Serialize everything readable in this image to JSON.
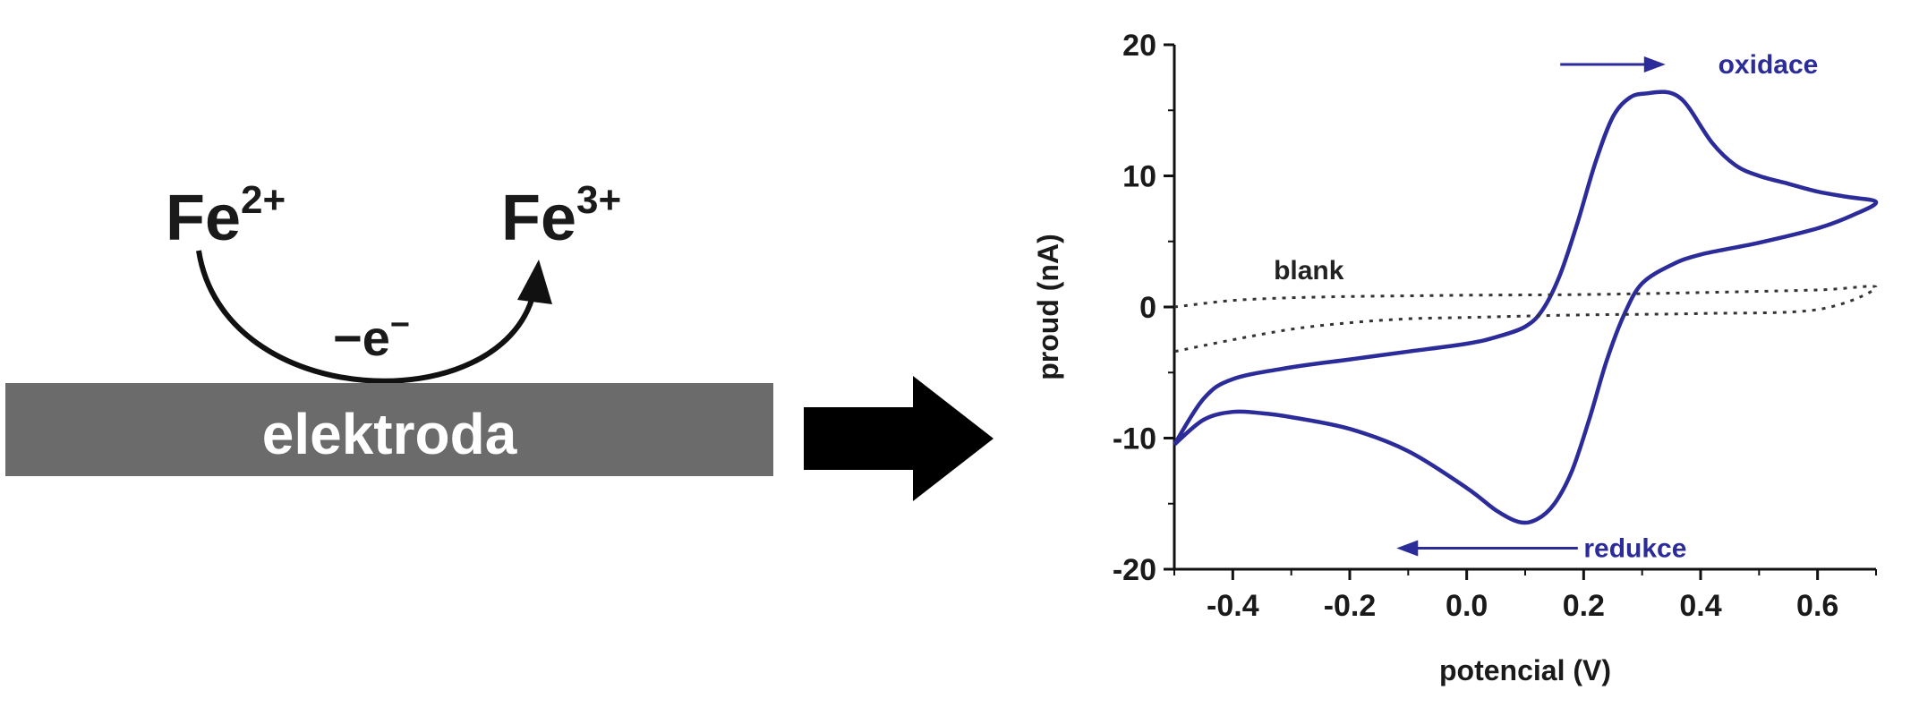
{
  "scheme": {
    "reactant": {
      "base": "Fe",
      "charge": "2+"
    },
    "product": {
      "base": "Fe",
      "charge": "3+"
    },
    "electron_label": "−e",
    "electron_sup": "−",
    "electrode_label": "elektroda",
    "electrode_color": "#6b6b6b",
    "arrow_icon": "big-right-arrow-icon"
  },
  "chart_data": {
    "type": "line",
    "xlabel": "potencial (V)",
    "ylabel": "proud (nA)",
    "xlim": [
      -0.5,
      0.7
    ],
    "ylim": [
      -20,
      20
    ],
    "xticks": [
      -0.4,
      -0.2,
      0.0,
      0.2,
      0.4,
      0.6
    ],
    "xtick_labels": [
      "-0.4",
      "-0.2",
      "0.0",
      "0.2",
      "0.4",
      "0.6"
    ],
    "yticks": [
      -20,
      -10,
      0,
      10,
      20
    ],
    "ytick_labels": [
      "-20",
      "-10",
      "0",
      "10",
      "20"
    ],
    "grid": false,
    "series": [
      {
        "style": "solid",
        "color": "#2b2b9a",
        "x": [
          -0.5,
          -0.45,
          -0.4,
          -0.3,
          -0.2,
          -0.1,
          0.0,
          0.05,
          0.1,
          0.13,
          0.16,
          0.19,
          0.22,
          0.25,
          0.28,
          0.31,
          0.34,
          0.36,
          0.38,
          0.42,
          0.46,
          0.5,
          0.55,
          0.6,
          0.65,
          0.7,
          0.66,
          0.6,
          0.5,
          0.4,
          0.35,
          0.3,
          0.27,
          0.24,
          0.21,
          0.18,
          0.15,
          0.12,
          0.09,
          0.05,
          0.0,
          -0.1,
          -0.2,
          -0.3,
          -0.35,
          -0.4,
          -0.45,
          -0.5
        ],
        "y": [
          -10.5,
          -7.0,
          -5.5,
          -4.6,
          -4.0,
          -3.4,
          -2.8,
          -2.3,
          -1.5,
          -0.2,
          2.5,
          6.5,
          11.0,
          14.5,
          16.0,
          16.3,
          16.4,
          16.1,
          15.2,
          12.5,
          10.8,
          10.0,
          9.4,
          8.8,
          8.4,
          8.0,
          7.0,
          6.0,
          4.9,
          4.0,
          3.2,
          1.8,
          -0.5,
          -4.0,
          -8.5,
          -12.5,
          -15.0,
          -16.2,
          -16.4,
          -15.5,
          -13.8,
          -11.0,
          -9.3,
          -8.4,
          -8.1,
          -8.0,
          -8.6,
          -10.5
        ]
      },
      {
        "name": "blank",
        "style": "dotted",
        "color": "#333333",
        "x": [
          -0.5,
          -0.4,
          -0.3,
          -0.2,
          -0.1,
          0.0,
          0.2,
          0.4,
          0.6,
          0.7,
          0.6,
          0.4,
          0.2,
          0.0,
          -0.1,
          -0.2,
          -0.3,
          -0.4,
          -0.5
        ],
        "y": [
          0.0,
          0.5,
          0.7,
          0.8,
          0.85,
          0.9,
          0.95,
          1.1,
          1.3,
          1.5,
          -0.2,
          -0.5,
          -0.6,
          -0.8,
          -0.9,
          -1.2,
          -1.7,
          -2.5,
          -3.4
        ]
      }
    ],
    "annotations": [
      {
        "text": "oxidace",
        "x": 0.43,
        "y": 18.5,
        "color": "#2b2b9a",
        "arrow": "right",
        "arrow_from": 0.16,
        "arrow_to": 0.34
      },
      {
        "text": "redukce",
        "x": 0.2,
        "y": -18.4,
        "color": "#2b2b9a",
        "arrow": "left",
        "arrow_from": 0.19,
        "arrow_to": -0.12
      },
      {
        "text": "blank",
        "x": -0.33,
        "y": 2.8,
        "color": "#222222"
      }
    ]
  }
}
